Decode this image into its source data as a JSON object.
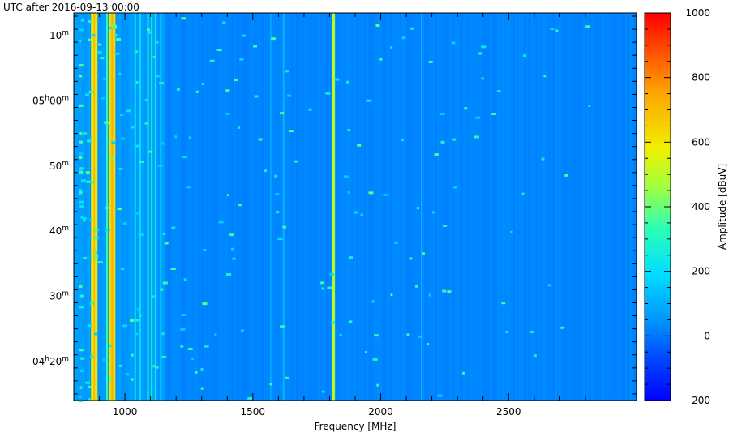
{
  "chart_data": {
    "type": "heatmap",
    "title": "UTC after 2016-09-13 00:00",
    "xlabel": "Frequency [MHz]",
    "ylabel": "",
    "xlim": [
      800,
      3000
    ],
    "x_ticks": [
      1000,
      1500,
      2000,
      2500
    ],
    "y_ticks": [
      {
        "base": "04",
        "sup": "h",
        "rest": "20",
        "rest_sup": "m"
      },
      {
        "base": "30",
        "sup": "m",
        "rest": "",
        "rest_sup": ""
      },
      {
        "base": "40",
        "sup": "m",
        "rest": "",
        "rest_sup": ""
      },
      {
        "base": "50",
        "sup": "m",
        "rest": "",
        "rest_sup": ""
      },
      {
        "base": "05",
        "sup": "h",
        "rest": "00",
        "rest_sup": "m"
      },
      {
        "base": "10",
        "sup": "m",
        "rest": "",
        "rest_sup": ""
      }
    ],
    "y_tick_minutes": [
      260,
      270,
      280,
      290,
      300,
      310
    ],
    "ylim_minutes": [
      254,
      313.5
    ],
    "colorbar": {
      "label": "Amplitude [dBuV]",
      "range": [
        -200,
        1000
      ],
      "ticks": [
        -200,
        0,
        200,
        400,
        600,
        800,
        1000
      ]
    },
    "background_level": 25,
    "strong_lines_mhz": [
      {
        "freq": 880,
        "level": 600
      },
      {
        "freq": 950,
        "level": 620
      },
      {
        "freq": 1815,
        "level": 430
      }
    ],
    "medium_lines_mhz": [
      {
        "freq": 930,
        "level": 330
      },
      {
        "freq": 1040,
        "level": 230
      },
      {
        "freq": 1090,
        "level": 260
      },
      {
        "freq": 1105,
        "level": 300
      },
      {
        "freq": 1120,
        "level": 250
      },
      {
        "freq": 1060,
        "level": 200
      },
      {
        "freq": 1140,
        "level": 160
      },
      {
        "freq": 1620,
        "level": 120
      },
      {
        "freq": 1570,
        "level": 90
      },
      {
        "freq": 2160,
        "level": 110
      }
    ]
  }
}
